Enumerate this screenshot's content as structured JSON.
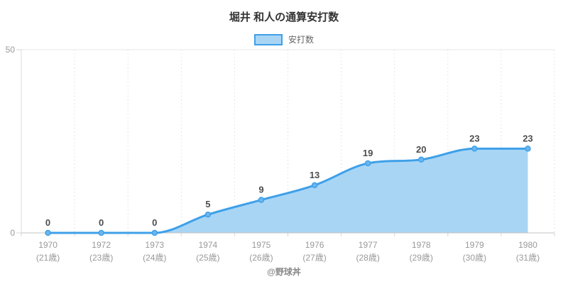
{
  "chart_data": {
    "type": "area",
    "title": "堀井 和人の通算安打数",
    "legend": {
      "label": "安打数",
      "position": "top"
    },
    "categories": [
      "1970",
      "1972",
      "1973",
      "1974",
      "1975",
      "1976",
      "1977",
      "1978",
      "1979",
      "1980"
    ],
    "age_labels": [
      "(21歳)",
      "(23歳)",
      "(24歳)",
      "(25歳)",
      "(26歳)",
      "(27歳)",
      "(28歳)",
      "(29歳)",
      "(30歳)",
      "(31歳)"
    ],
    "values": [
      0,
      0,
      0,
      5,
      9,
      13,
      19,
      20,
      23,
      23
    ],
    "ylim": [
      0,
      50
    ],
    "yticks": [
      0,
      50
    ],
    "grid": {
      "vertical": "dashed",
      "horizontal": "ticks-only"
    },
    "colors": {
      "line": "#3ea0e8",
      "area": "#a9d5f5",
      "marker_fill": "#6ab6ef",
      "marker_stroke": "#3ea0e8",
      "grid": "#e7e7e7",
      "axis_line": "#c4c4c4",
      "side_line": "#dcdcdc",
      "tick": "#d6d6d6",
      "tick_label": "#999999",
      "value_label": "#4d4d4d"
    }
  },
  "footer": {
    "credit": "@野球丼"
  }
}
